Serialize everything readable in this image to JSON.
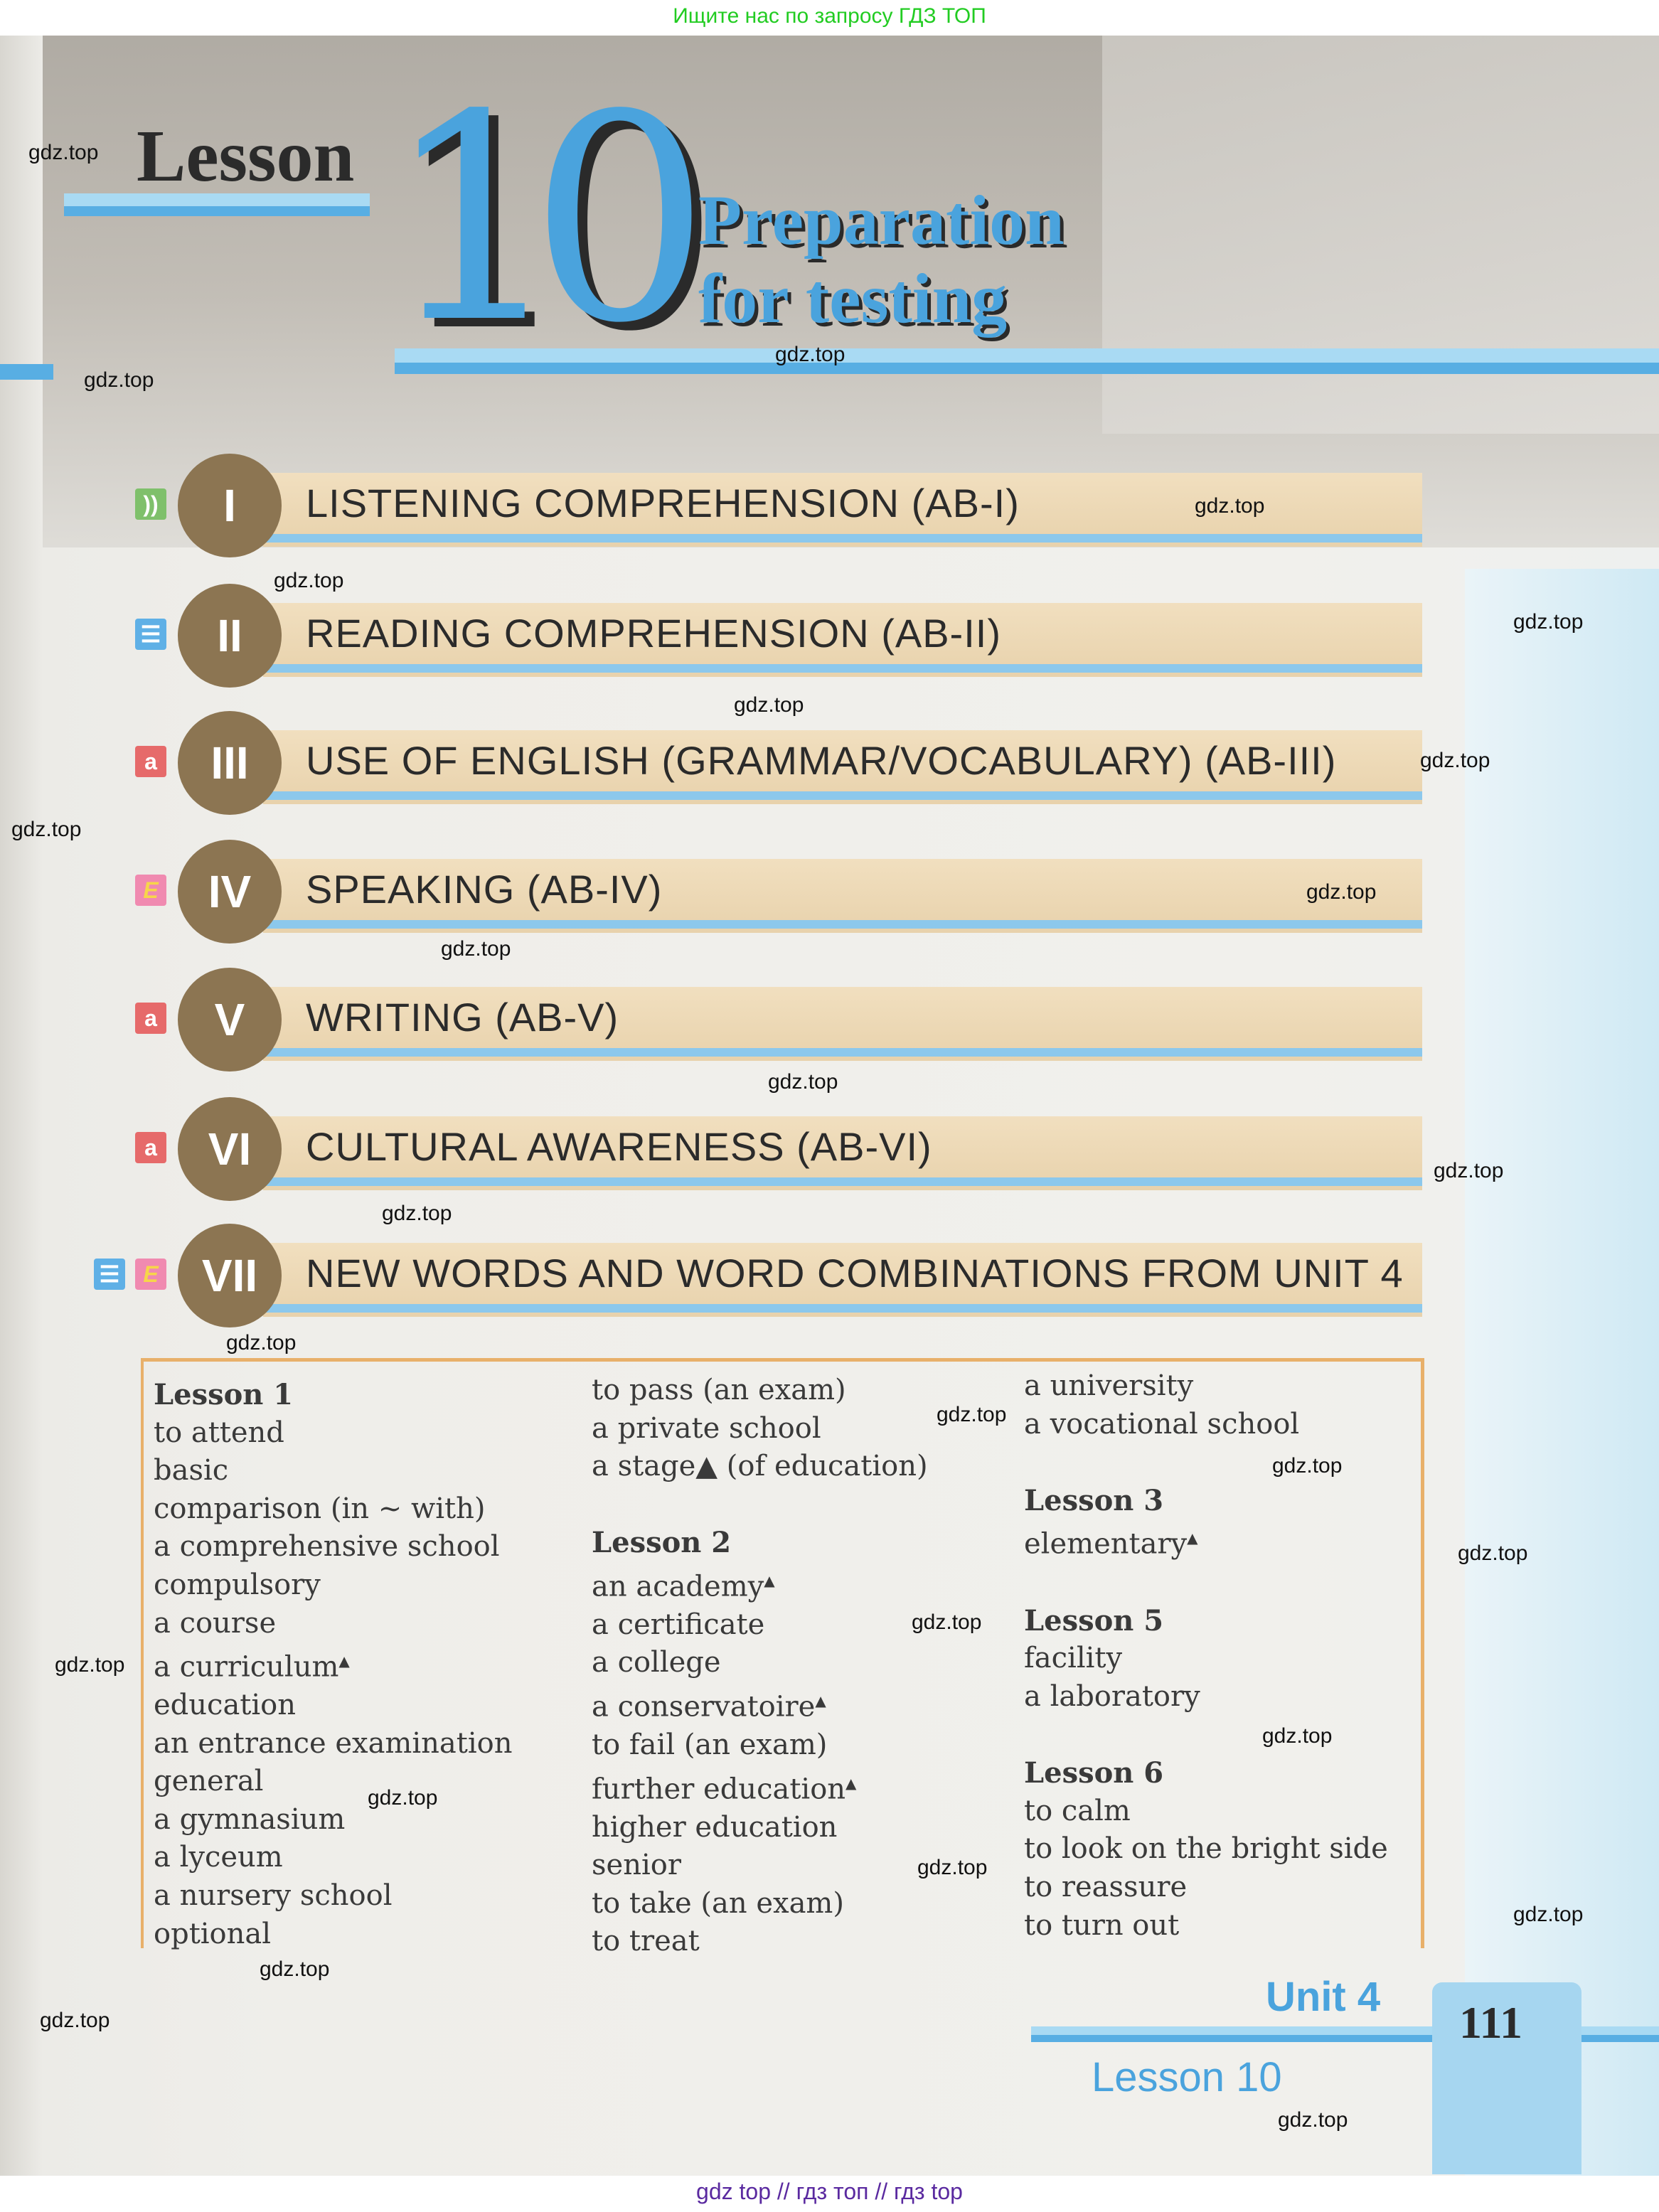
{
  "top_banner": "Ищите нас по запросу ГДЗ ТОП",
  "header": {
    "lesson_word": "Lesson",
    "number": "10",
    "title_line1": "Preparation",
    "title_line2": "for testing"
  },
  "sections": [
    {
      "numeral": "I",
      "label": "LISTENING COMPREHENSION (AB-I)",
      "icons": [
        "listening-icon"
      ]
    },
    {
      "numeral": "II",
      "label": "READING COMPREHENSION (AB-II)",
      "icons": [
        "reading-icon"
      ]
    },
    {
      "numeral": "III",
      "label": "USE OF ENGLISH (GRAMMAR/VOCABULARY) (AB-III)",
      "icons": [
        "use-of-english-icon"
      ]
    },
    {
      "numeral": "IV",
      "label": "SPEAKING (AB-IV)",
      "icons": [
        "speaking-icon"
      ]
    },
    {
      "numeral": "V",
      "label": "WRITING (AB-V)",
      "icons": [
        "writing-icon"
      ]
    },
    {
      "numeral": "VI",
      "label": "CULTURAL AWARENESS (AB-VI)",
      "icons": [
        "writing-icon"
      ]
    },
    {
      "numeral": "VII",
      "label": "NEW WORDS AND WORD COMBINATIONS FROM UNIT 4",
      "icons": [
        "reading-icon",
        "speaking-icon"
      ]
    }
  ],
  "vocab": {
    "col1": [
      {
        "t": "Lesson 1",
        "h": true
      },
      {
        "t": "to attend"
      },
      {
        "t": "basic"
      },
      {
        "t": "comparison (in ~ with)"
      },
      {
        "t": "a comprehensive school"
      },
      {
        "t": "compulsory"
      },
      {
        "t": "a course"
      },
      {
        "t": "a curriculum",
        "m": true
      },
      {
        "t": "education"
      },
      {
        "t": "an entrance examination"
      },
      {
        "t": "general"
      },
      {
        "t": "a gymnasium"
      },
      {
        "t": "a lyceum"
      },
      {
        "t": "a nursery school"
      },
      {
        "t": "optional"
      }
    ],
    "col2": [
      {
        "t": "to pass (an exam)"
      },
      {
        "t": "a private school"
      },
      {
        "t": "a stage▲ (of education)"
      },
      {
        "gap": true
      },
      {
        "t": "Lesson 2",
        "h": true
      },
      {
        "t": "an academy",
        "m": true
      },
      {
        "t": "a certificate"
      },
      {
        "t": "a college"
      },
      {
        "t": "a conservatoire",
        "m": true
      },
      {
        "t": "to fail (an exam)"
      },
      {
        "t": "further education",
        "m": true
      },
      {
        "t": "higher education"
      },
      {
        "t": "senior"
      },
      {
        "t": "to take (an exam)"
      },
      {
        "t": "to treat"
      }
    ],
    "col3": [
      {
        "t": "a university"
      },
      {
        "t": "a vocational school"
      },
      {
        "gap": true
      },
      {
        "t": "Lesson 3",
        "h": true
      },
      {
        "t": "elementary",
        "m": true
      },
      {
        "gap": true
      },
      {
        "t": "Lesson 5",
        "h": true
      },
      {
        "t": "facility"
      },
      {
        "t": "a laboratory"
      },
      {
        "gap": true
      },
      {
        "t": "Lesson 6",
        "h": true
      },
      {
        "t": "to calm"
      },
      {
        "t": "to look on the bright side"
      },
      {
        "t": "to reassure"
      },
      {
        "t": "to turn out"
      }
    ],
    "marker": "▲"
  },
  "footer_nav": {
    "unit": "Unit 4",
    "lesson": "Lesson 10",
    "page": "111"
  },
  "watermark": "gdz.top",
  "bottom_banner": "gdz top  //  гдз топ  //  гдз top",
  "colors": {
    "accent_blue": "#4aa3dd",
    "banner": "#f1dfbf",
    "circle": "#8c7552",
    "box_border": "#e8b06a"
  }
}
